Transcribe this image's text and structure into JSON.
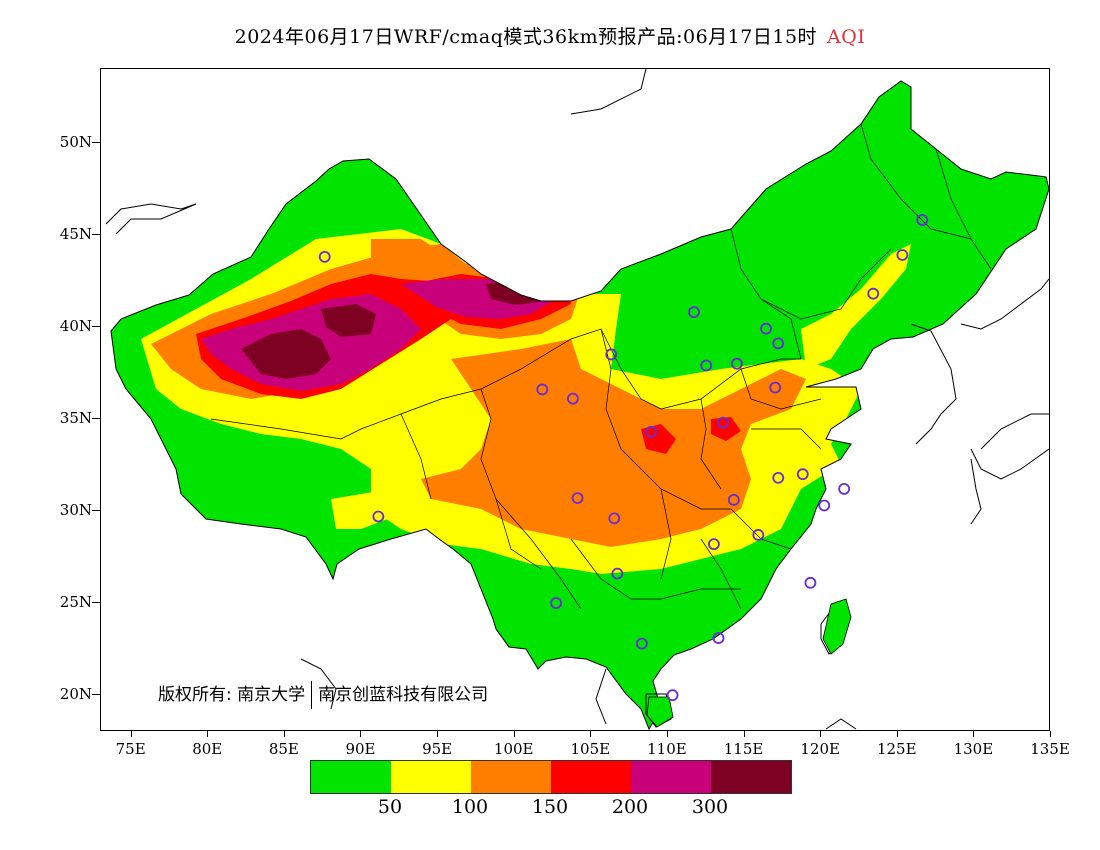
{
  "title": {
    "text": "2024年06月17日WRF/cmaq模式36km预报产品:06月17日15时",
    "variable": "AQI",
    "variable_color": "#e8303a"
  },
  "map": {
    "lat_ticks": [
      "50N",
      "45N",
      "40N",
      "35N",
      "30N",
      "25N",
      "20N"
    ],
    "lat_values": [
      50,
      45,
      40,
      35,
      30,
      25,
      20
    ],
    "lon_ticks": [
      "75E",
      "80E",
      "85E",
      "90E",
      "95E",
      "100E",
      "105E",
      "110E",
      "115E",
      "120E",
      "125E",
      "130E",
      "135E"
    ],
    "lon_values": [
      75,
      80,
      85,
      90,
      95,
      100,
      105,
      110,
      115,
      120,
      125,
      130,
      135
    ],
    "lon_range": [
      73,
      135
    ],
    "lat_range": [
      18,
      54
    ],
    "copyright": {
      "owner_label": "版权所有:",
      "org1": "南京大学",
      "org2": "南京创蓝科技有限公司"
    },
    "stations": [
      {
        "lon": 87.6,
        "lat": 43.8
      },
      {
        "lon": 101.8,
        "lat": 36.6
      },
      {
        "lon": 103.8,
        "lat": 36.1
      },
      {
        "lon": 106.3,
        "lat": 38.5
      },
      {
        "lon": 111.7,
        "lat": 40.8
      },
      {
        "lon": 116.4,
        "lat": 39.9
      },
      {
        "lon": 117.2,
        "lat": 39.1
      },
      {
        "lon": 114.5,
        "lat": 38.0
      },
      {
        "lon": 112.5,
        "lat": 37.9
      },
      {
        "lon": 117.0,
        "lat": 36.7
      },
      {
        "lon": 113.6,
        "lat": 34.8
      },
      {
        "lon": 108.9,
        "lat": 34.3
      },
      {
        "lon": 117.2,
        "lat": 31.8
      },
      {
        "lon": 118.8,
        "lat": 32.0
      },
      {
        "lon": 121.5,
        "lat": 31.2
      },
      {
        "lon": 120.2,
        "lat": 30.3
      },
      {
        "lon": 114.3,
        "lat": 30.6
      },
      {
        "lon": 104.1,
        "lat": 30.7
      },
      {
        "lon": 106.5,
        "lat": 29.6
      },
      {
        "lon": 115.9,
        "lat": 28.7
      },
      {
        "lon": 113.0,
        "lat": 28.2
      },
      {
        "lon": 106.7,
        "lat": 26.6
      },
      {
        "lon": 102.7,
        "lat": 25.0
      },
      {
        "lon": 119.3,
        "lat": 26.1
      },
      {
        "lon": 113.3,
        "lat": 23.1
      },
      {
        "lon": 108.3,
        "lat": 22.8
      },
      {
        "lon": 110.3,
        "lat": 20.0
      },
      {
        "lon": 91.1,
        "lat": 29.7
      },
      {
        "lon": 123.4,
        "lat": 41.8
      },
      {
        "lon": 125.3,
        "lat": 43.9
      },
      {
        "lon": 126.6,
        "lat": 45.8
      }
    ]
  },
  "legend": {
    "colors": [
      "#00e400",
      "#ffff00",
      "#ff7e00",
      "#ff0000",
      "#c8007a",
      "#7e0023"
    ],
    "labels": [
      "50",
      "100",
      "150",
      "200",
      "300"
    ]
  }
}
